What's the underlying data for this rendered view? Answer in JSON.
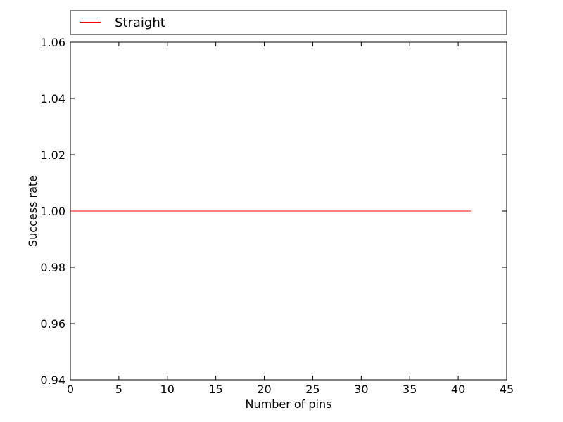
{
  "chart_data": {
    "type": "line",
    "title": "",
    "xlabel": "Number of pins",
    "ylabel": "Success rate",
    "xlim": [
      0,
      45
    ],
    "ylim": [
      0.94,
      1.06
    ],
    "xticks": [
      0,
      5,
      10,
      15,
      20,
      25,
      30,
      35,
      40,
      45
    ],
    "xtick_labels": [
      "0",
      "5",
      "10",
      "15",
      "20",
      "25",
      "30",
      "35",
      "40",
      "45"
    ],
    "yticks": [
      0.94,
      0.96,
      0.98,
      1.0,
      1.02,
      1.04,
      1.06
    ],
    "ytick_labels": [
      "0.94",
      "0.96",
      "0.98",
      "1.00",
      "1.02",
      "1.04",
      "1.06"
    ],
    "grid": false,
    "legend_position": "top, outside plot",
    "series": [
      {
        "name": "Straight",
        "color": "#ff0000",
        "x": [
          0,
          41.3
        ],
        "y": [
          1.0,
          1.0
        ]
      }
    ]
  }
}
